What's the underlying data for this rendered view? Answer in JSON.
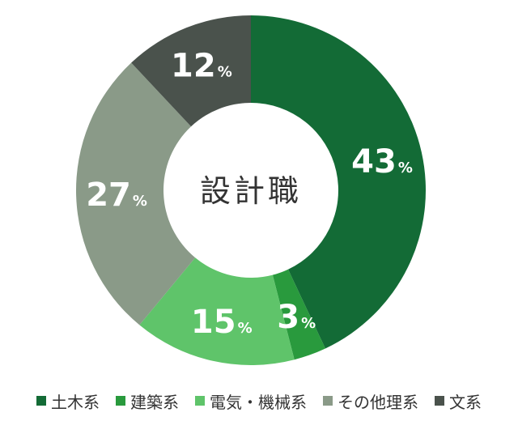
{
  "chart_data": {
    "type": "pie",
    "donut": true,
    "center_label": "設計職",
    "unit": "%",
    "series": [
      {
        "name": "土木系",
        "value": 43,
        "color": "#136b36"
      },
      {
        "name": "建築系",
        "value": 3,
        "color": "#299a3d"
      },
      {
        "name": "電気・機械系",
        "value": 15,
        "color": "#5fc46a"
      },
      {
        "name": "その他理系",
        "value": 27,
        "color": "#8a9a88"
      },
      {
        "name": "文系",
        "value": 12,
        "color": "#4a524c"
      }
    ],
    "legend_position": "bottom"
  }
}
